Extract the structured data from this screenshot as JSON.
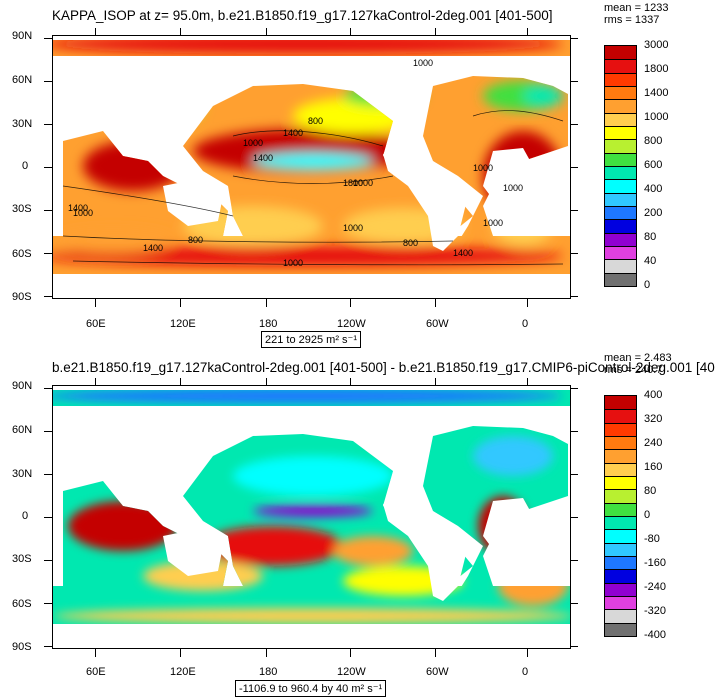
{
  "panel_top": {
    "title": "KAPPA_ISOP at z=  95.0m, b.e21.B1850.f19_g17.127kaControl-2deg.001 [401-500]",
    "mean": "mean = 1233",
    "rms": "rms = 1337",
    "range": "221 to 2925 m² s⁻¹",
    "colorbar_labels": [
      "3000",
      "1800",
      "1400",
      "1000",
      "800",
      "600",
      "400",
      "200",
      "80",
      "40",
      "0"
    ],
    "colorbar_colors": [
      "#c40000",
      "#e61010",
      "#ff3a00",
      "#ff7a10",
      "#ffa030",
      "#ffce50",
      "#ffff00",
      "#b8f030",
      "#40e040",
      "#00e8b0",
      "#00ffff",
      "#30c8ff",
      "#1e78ff",
      "#0000e0",
      "#9000d0",
      "#e040e0",
      "#d8d8d8",
      "#707070"
    ]
  },
  "panel_bottom": {
    "title": "b.e21.B1850.f19_g17.127kaControl-2deg.001 [401-500] - b.e21.B1850.f19_g17.CMIP6-piControl-2deg.001 [40",
    "mean": "mean = 2.483",
    "rms": "rms = 240.7",
    "range": "-1106.9 to 960.4 by 40 m² s⁻¹",
    "colorbar_labels": [
      "400",
      "320",
      "240",
      "160",
      "80",
      "0",
      "-80",
      "-160",
      "-240",
      "-320",
      "-400"
    ],
    "colorbar_colors": [
      "#c40000",
      "#e61010",
      "#ff3a00",
      "#ff7a10",
      "#ffa030",
      "#ffce50",
      "#ffff00",
      "#b8f030",
      "#40e040",
      "#00e8b0",
      "#00ffff",
      "#30c8ff",
      "#1e78ff",
      "#0000e0",
      "#9000d0",
      "#e040e0",
      "#d8d8d8",
      "#707070"
    ]
  },
  "axes": {
    "lat_labels": [
      "90N",
      "60N",
      "30N",
      "0",
      "30S",
      "60S",
      "90S"
    ],
    "lon_labels": [
      "60E",
      "120E",
      "180",
      "120W",
      "60W",
      "0"
    ]
  },
  "contour_labels_top": [
    "800",
    "1000",
    "1400",
    "1000",
    "1400",
    "1000",
    "1000",
    "1400",
    "1000",
    "800",
    "1000",
    "1400",
    "1400",
    "1000",
    "1800",
    "1000",
    "1000",
    "800"
  ]
}
